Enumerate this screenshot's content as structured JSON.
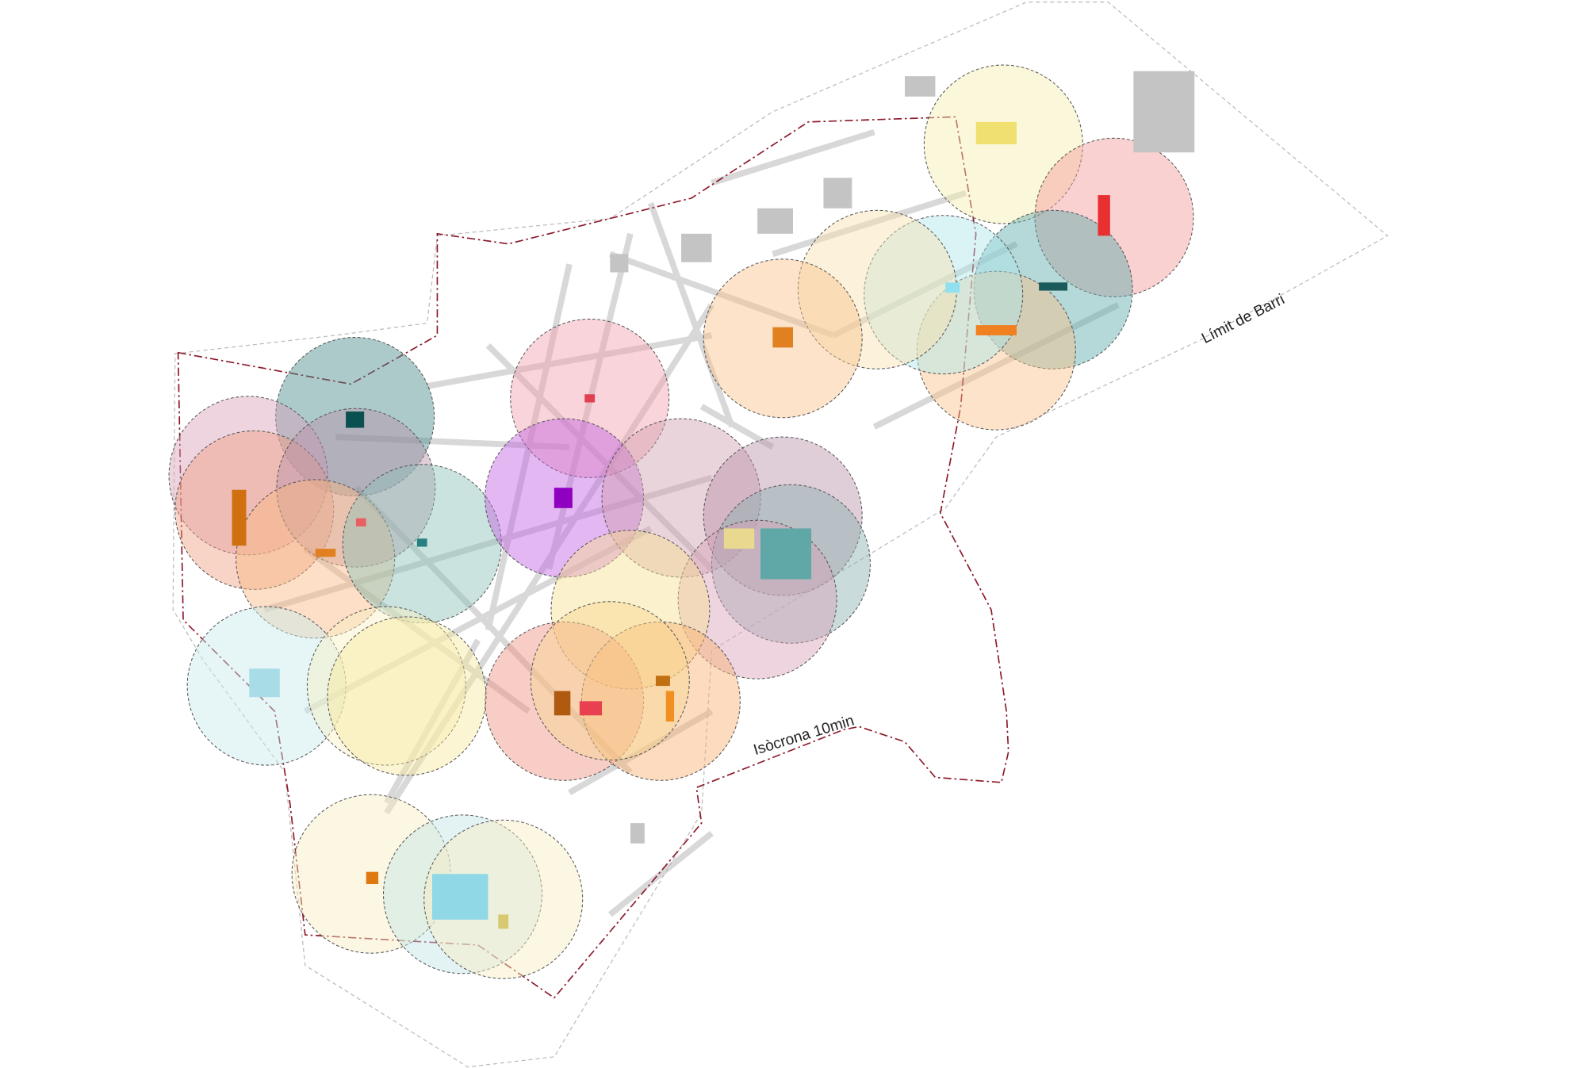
{
  "labels": {
    "district_limit": "Límit de Barri",
    "isochrone": "Isòcrona 10min"
  }
}
